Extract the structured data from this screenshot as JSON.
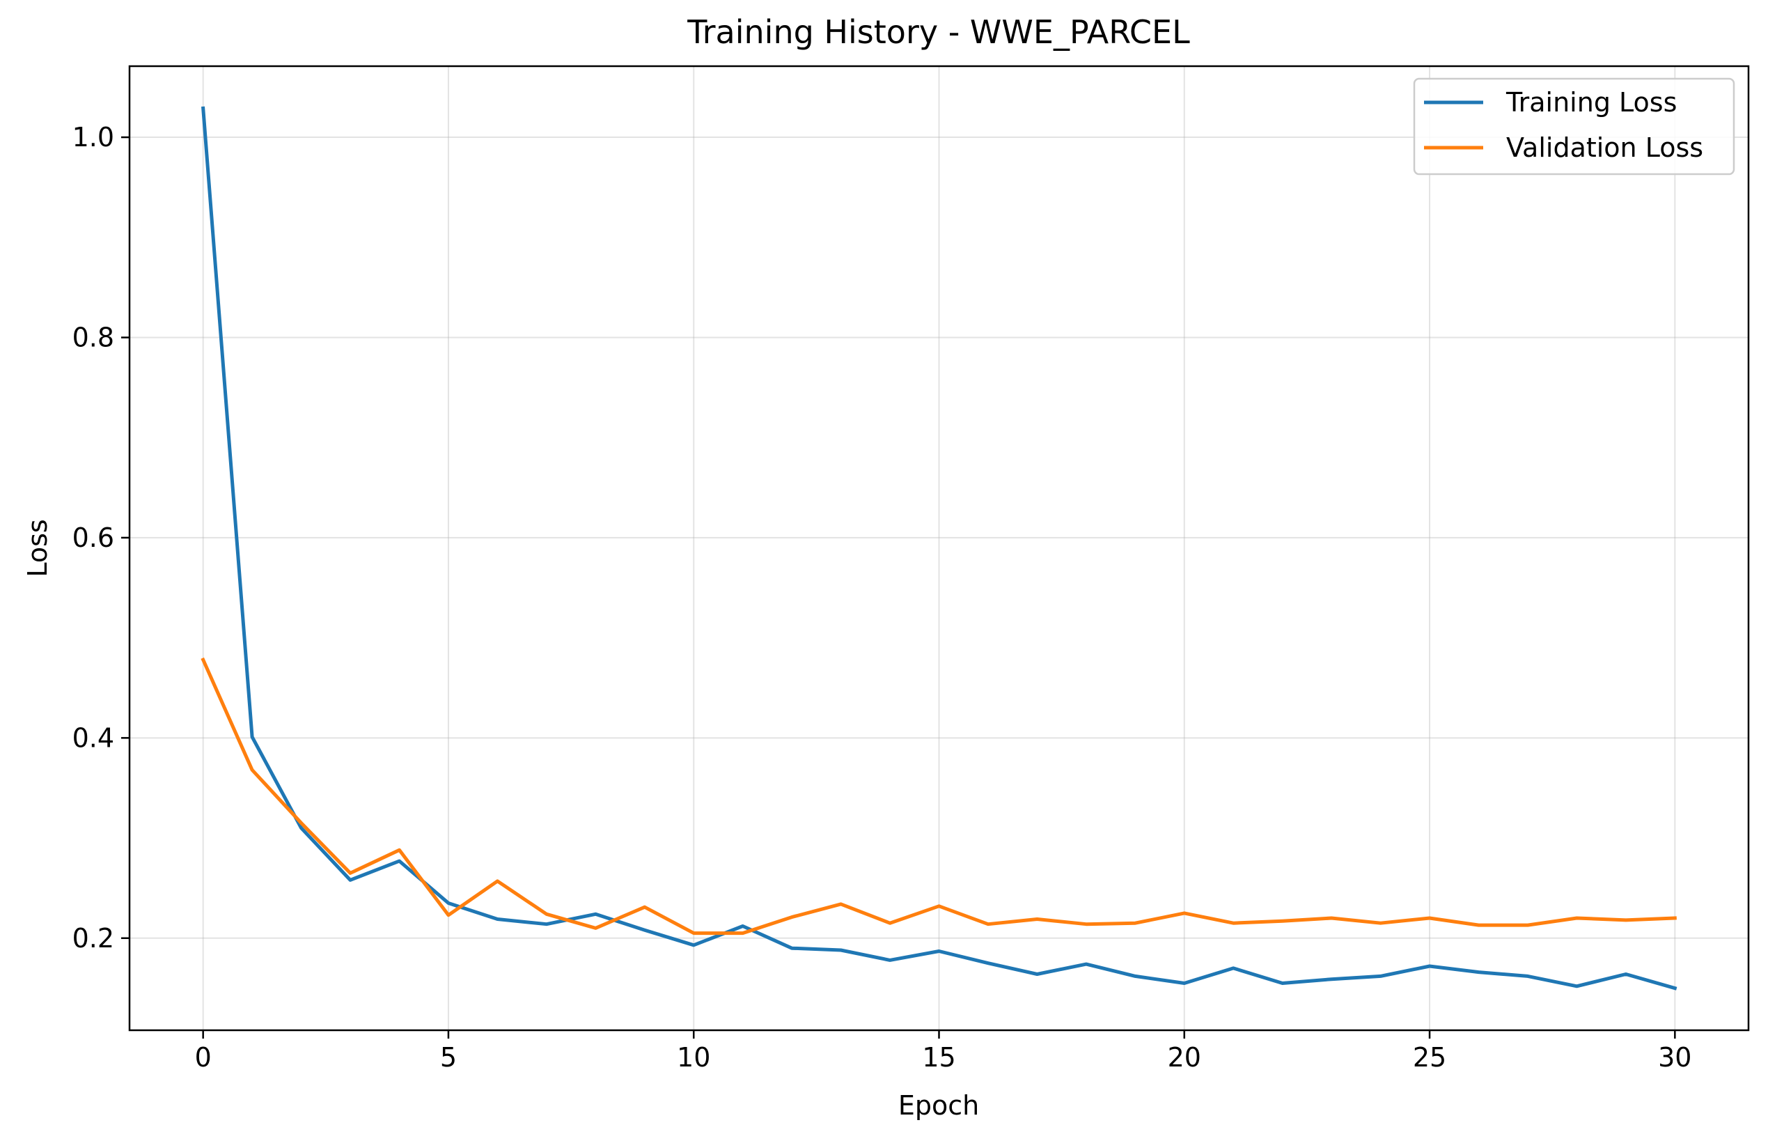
{
  "chart_data": {
    "type": "line",
    "title": "Training History - WWE_PARCEL",
    "xlabel": "Epoch",
    "ylabel": "Loss",
    "xlim": [
      -1.5,
      31.5
    ],
    "ylim": [
      0.108,
      1.071
    ],
    "xticks": [
      0,
      5,
      10,
      15,
      20,
      25,
      30
    ],
    "yticks": [
      0.2,
      0.4,
      0.6,
      0.8,
      1.0
    ],
    "ytick_labels": [
      "0.2",
      "0.4",
      "0.6",
      "0.8",
      "1.0"
    ],
    "grid": true,
    "legend_position": "top-right",
    "x": [
      0,
      1,
      2,
      3,
      4,
      5,
      6,
      7,
      8,
      9,
      10,
      11,
      12,
      13,
      14,
      15,
      16,
      17,
      18,
      19,
      20,
      21,
      22,
      23,
      24,
      25,
      26,
      27,
      28,
      29,
      30
    ],
    "series": [
      {
        "name": "Training Loss",
        "color": "#1f77b4",
        "values": [
          1.029,
          0.401,
          0.31,
          0.258,
          0.277,
          0.235,
          0.219,
          0.214,
          0.224,
          0.208,
          0.193,
          0.212,
          0.19,
          0.188,
          0.178,
          0.187,
          0.175,
          0.164,
          0.174,
          0.162,
          0.155,
          0.17,
          0.155,
          0.159,
          0.162,
          0.172,
          0.166,
          0.162,
          0.152,
          0.164,
          0.15
        ]
      },
      {
        "name": "Validation Loss",
        "color": "#ff7f0e",
        "values": [
          0.478,
          0.368,
          0.315,
          0.265,
          0.288,
          0.223,
          0.257,
          0.224,
          0.21,
          0.231,
          0.205,
          0.205,
          0.221,
          0.234,
          0.215,
          0.232,
          0.214,
          0.219,
          0.214,
          0.215,
          0.225,
          0.215,
          0.217,
          0.22,
          0.215,
          0.22,
          0.213,
          0.213,
          0.22,
          0.218,
          0.22
        ]
      }
    ]
  }
}
